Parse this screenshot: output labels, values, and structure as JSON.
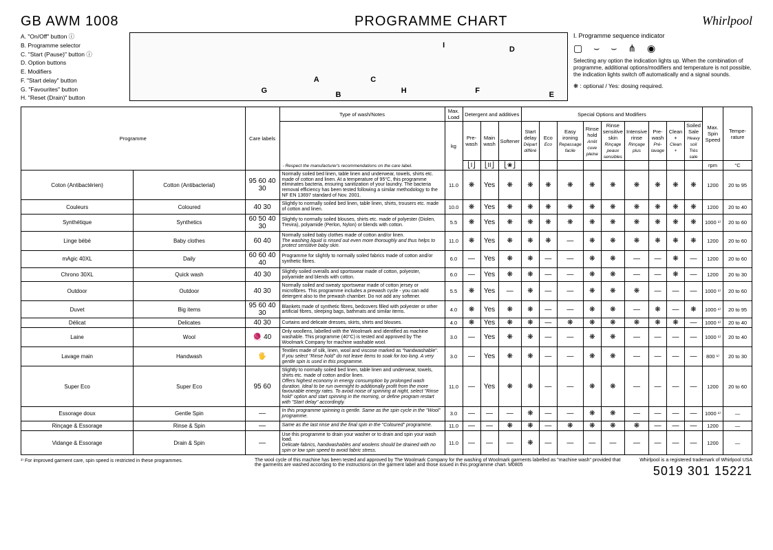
{
  "header": {
    "model": "GB  AWM 1008",
    "title": "PROGRAMME CHART",
    "logo": "Whirlpool"
  },
  "legend_left": [
    "A. \"On/Off\" button ⓘ",
    "B. Programme selector",
    "C. \"Start (Pause)\" button ⓘ",
    "D. Option buttons",
    "E. Modifiers",
    "F. \"Start delay\" button",
    "G. \"Favourites\" button",
    "H. \"Reset (Drain)\" button"
  ],
  "panel_labels": {
    "A": "A",
    "B": "B",
    "C": "C",
    "D": "D",
    "E": "E",
    "F": "F",
    "G": "G",
    "H": "H",
    "I": "I"
  },
  "legend_right": {
    "seq_title": "I.  Programme sequence indicator",
    "note": "Selecting any option the indication lights up. When the combination of programme, additional options/modifiers and temperature is not possible, the indication lights switch off automatically and a signal sounds.",
    "optional": "❋ : optional / Yes: dosing required."
  },
  "table_headers": {
    "programme": "Programme",
    "care": "Care labels",
    "type": "Type of wash/Notes",
    "type_sub": "- Respect the manufacturer's recommendations on the care label.",
    "maxload": "Max. Load",
    "maxload_unit": "kg",
    "det_group": "Detergent and additives",
    "prewash": "Pre-wash",
    "mainwash": "Main wash",
    "softener": "Softener",
    "special_group": "Special Options and Modifiers",
    "startdelay": "Start delay",
    "startdelay_sub": "Départ différé",
    "eco": "Eco",
    "eco_sub": "Eco",
    "easyiron": "Easy ironing",
    "easyiron_sub": "Repassage facile",
    "rinsehold": "Rinse hold",
    "rinsehold_sub": "Arrêt cuve pleine",
    "rinsesens": "Rinse sensitive skin",
    "rinsesens_sub": "Rinçage peaux sensibles",
    "intrinse": "Intensive rinse",
    "intrinse_sub": "Rinçage plus",
    "prewash2": "Pre-wash",
    "prewash2_sub": "Pré-lavage",
    "cleanplus": "Clean +",
    "cleanplus_sub": "Clean +",
    "soiled": "Soiled Sale",
    "soiled_sub": "Heavy soil Très sale",
    "spin": "Max. Spin Speed",
    "spin_unit": "rpm",
    "temp": "Tempe-rature",
    "temp_unit": "°C"
  },
  "rows": [
    {
      "prog_fr": "Coton (Antibactérien)",
      "prog_en": "Cotton (Antibacterial)",
      "care": "95 60 40 30",
      "notes": "Normally soiled bed linen, table linen and underwear, towels, shirts etc. made of cotton and linen. At a temperature of 95°C, this programme eliminates bacteria, ensuring sanitization of your laundry. The bacteria removal efficiency has been tested following a similar methodology to the NF EN 13697 standard of Nov. 2001.",
      "load": "11.0",
      "cells": [
        "❋",
        "Yes",
        "❋",
        "❋",
        "❋",
        "❋",
        "❋",
        "❋",
        "❋",
        "❋",
        "❋",
        "❋"
      ],
      "spin": "1200",
      "temp": "20 to 95"
    },
    {
      "prog_fr": "Couleurs",
      "prog_en": "Coloured",
      "care": "40 30",
      "notes": "Slightly to normally soiled bed linen, table linen, shirts, trousers etc. made of cotton and linen.",
      "load": "10.0",
      "cells": [
        "❋",
        "Yes",
        "❋",
        "❋",
        "❋",
        "❋",
        "❋",
        "❋",
        "❋",
        "❋",
        "❋",
        "❋"
      ],
      "spin": "1200",
      "temp": "20 to 40"
    },
    {
      "prog_fr": "Synthétique",
      "prog_en": "Synthetics",
      "care": "60 50 40 30",
      "notes": "Slightly to normally soiled blouses, shirts etc. made of polyester (Diolen, Trevira), polyamide (Perlon, Nylon) or blends with cotton.",
      "load": "5.5",
      "cells": [
        "❋",
        "Yes",
        "❋",
        "❋",
        "❋",
        "❋",
        "❋",
        "❋",
        "❋",
        "❋",
        "❋",
        "❋"
      ],
      "spin": "1000 ¹⁾",
      "temp": "20 to 60"
    },
    {
      "prog_fr": "Linge bébé",
      "prog_en": "Baby clothes",
      "care": "60 40",
      "notes": "Normally soiled baby clothes made of cotton and/or linen.",
      "notes_italic": "The washing liquid is rinsed out even more thoroughly and thus helps to protect sensitive baby skin.",
      "load": "11.0",
      "cells": [
        "❋",
        "Yes",
        "❋",
        "❋",
        "❋",
        "—",
        "❋",
        "❋",
        "❋",
        "❋",
        "❋",
        "❋"
      ],
      "spin": "1200",
      "temp": "20 to 60"
    },
    {
      "prog_fr": "mAgic 40XL",
      "prog_en": "Daily",
      "care": "60 60 40 40",
      "notes": "Programme for slightly to normally soiled fabrics made of cotton and/or synthetic fibres.",
      "load": "6.0",
      "cells": [
        "—",
        "Yes",
        "❋",
        "❋",
        "—",
        "—",
        "❋",
        "❋",
        "—",
        "—",
        "❋",
        "—"
      ],
      "spin": "1200",
      "temp": "20 to 60"
    },
    {
      "prog_fr": "Chrono 30XL",
      "prog_en": "Quick wash",
      "care": "40 30",
      "notes": "Slightly soiled overalls and sportswear made of cotton, polyester, polyamide and blends with cotton.",
      "load": "6.0",
      "cells": [
        "—",
        "Yes",
        "❋",
        "❋",
        "—",
        "—",
        "❋",
        "❋",
        "—",
        "—",
        "❋",
        "—"
      ],
      "spin": "1200",
      "temp": "20 to 30"
    },
    {
      "prog_fr": "Outdoor",
      "prog_en": "Outdoor",
      "care": "40 30",
      "notes": "Normally soiled and sweaty sportswear made of cotton jersey or microfibres. This programme includes a prewash cycle - you can add detergent also to the prewash chamber. Do not add any softener.",
      "load": "5.5",
      "cells": [
        "❋",
        "Yes",
        "—",
        "❋",
        "—",
        "—",
        "❋",
        "❋",
        "❋",
        "—",
        "—",
        "—"
      ],
      "spin": "1000 ¹⁾",
      "temp": "20 to 60"
    },
    {
      "prog_fr": "Duvet",
      "prog_en": "Big items",
      "care": "95 60 40 30",
      "notes": "Blankets made of synthetic fibres, bedcovers filled with polyester or other artificial fibres, sleeping bags, bathmats and similar items.",
      "load": "4.0",
      "cells": [
        "❋",
        "Yes",
        "❋",
        "❋",
        "—",
        "—",
        "❋",
        "❋",
        "—",
        "❋",
        "—",
        "❋"
      ],
      "spin": "1000 ¹⁾",
      "temp": "20 to 95"
    },
    {
      "prog_fr": "Délicat",
      "prog_en": "Delicates",
      "care": "40 30",
      "notes": "Curtains and delicate dresses, skirts, shirts and blouses.",
      "load": "4.0",
      "cells": [
        "❋",
        "Yes",
        "❋",
        "❋",
        "—",
        "❋",
        "❋",
        "❋",
        "❋",
        "❋",
        "❋",
        "—"
      ],
      "spin": "1000 ¹⁾",
      "temp": "20 to 40"
    },
    {
      "prog_fr": "Laine",
      "prog_en": "Wool",
      "care": "🧶 40",
      "notes": "Only woollens, labelled with the Woolmark and identified as machine washable. This programme (40°C) is tested and approved by The Woolmark Company for machine washable wool.",
      "load": "3.0",
      "cells": [
        "—",
        "Yes",
        "❋",
        "❋",
        "—",
        "—",
        "❋",
        "❋",
        "—",
        "—",
        "—",
        "—"
      ],
      "spin": "1000 ¹⁾",
      "temp": "20 to 40"
    },
    {
      "prog_fr": "Lavage main",
      "prog_en": "Handwash",
      "care": "🖐",
      "notes": "Textiles made of silk, linen, wool and viscose marked as \"handwashable\".",
      "notes_italic": "If you select \"Rinse hold\" do not leave items to soak for too long. A very gentle spin is used in this programme.",
      "load": "3.0",
      "cells": [
        "—",
        "Yes",
        "❋",
        "❋",
        "—",
        "—",
        "❋",
        "❋",
        "—",
        "—",
        "—",
        "—"
      ],
      "spin": "800 ¹⁾",
      "temp": "20 to 30"
    },
    {
      "prog_fr": "Super Eco",
      "prog_en": "Super Eco",
      "care": "95 60",
      "notes": "Slightly to normally soiled bed linen, table linen and underwear, towels, shirts etc. made of cotton and/or linen.",
      "notes_italic": "Offers highest economy in energy consumption by prolonged wash duration. Ideal to be run overnight to additionally profit from the more favourable energy rates. To avoid noise of spinning at night, select \"Rinse hold\" option and start spinning in the morning, or define program restart with \"Start delay\" accordingly.",
      "load": "11.0",
      "cells": [
        "—",
        "Yes",
        "❋",
        "❋",
        "—",
        "—",
        "❋",
        "❋",
        "—",
        "—",
        "—",
        "—"
      ],
      "spin": "1200",
      "temp": "20 to 60"
    },
    {
      "prog_fr": "Essorage doux",
      "prog_en": "Gentle Spin",
      "care": "—",
      "notes_italic": "In this programme spinning is gentle. Same as the spin cycle in the \"Wool\" programme.",
      "load": "3.0",
      "cells": [
        "—",
        "—",
        "—",
        "❋",
        "—",
        "—",
        "❋",
        "❋",
        "—",
        "—",
        "—",
        "—"
      ],
      "spin": "1000 ¹⁾",
      "temp": "—"
    },
    {
      "prog_fr": "Rinçage & Essorage",
      "prog_en": "Rinse & Spin",
      "care": "—",
      "notes_italic": "Same as the last rinse and the final spin in the \"Coloured\" programme.",
      "load": "11.0",
      "cells": [
        "—",
        "—",
        "❋",
        "❋",
        "—",
        "❋",
        "❋",
        "❋",
        "❋",
        "—",
        "—",
        "—"
      ],
      "spin": "1200",
      "temp": "—"
    },
    {
      "prog_fr": "Vidange & Essorage",
      "prog_en": "Drain & Spin",
      "care": "—",
      "notes": "Use this programme to drain your washer or to drain and spin your wash load.",
      "notes_italic": "Delicate fabrics, handwashables and woolens should be drained with no spin or low spin speed to avoid fabric stress.",
      "load": "11.0",
      "cells": [
        "—",
        "—",
        "—",
        "❋",
        "—",
        "—",
        "—",
        "—",
        "—",
        "—",
        "—",
        "—"
      ],
      "spin": "1200",
      "temp": "—"
    }
  ],
  "footer": {
    "left": "¹⁾  For improved garment care, spin speed is restricted in these programmes.",
    "mid": "The wool cycle of this machine has been tested and approved by The Woolmark Company for the washing of Woolmark garments labelled as \"machine wash\" provided that the garments are washed according to the instructions on the garment label and those issued in this programme chart.  M0805",
    "right": "Whirlpool is a registered trademark of Whirlpool USA",
    "partno": "5019 301 15221"
  }
}
